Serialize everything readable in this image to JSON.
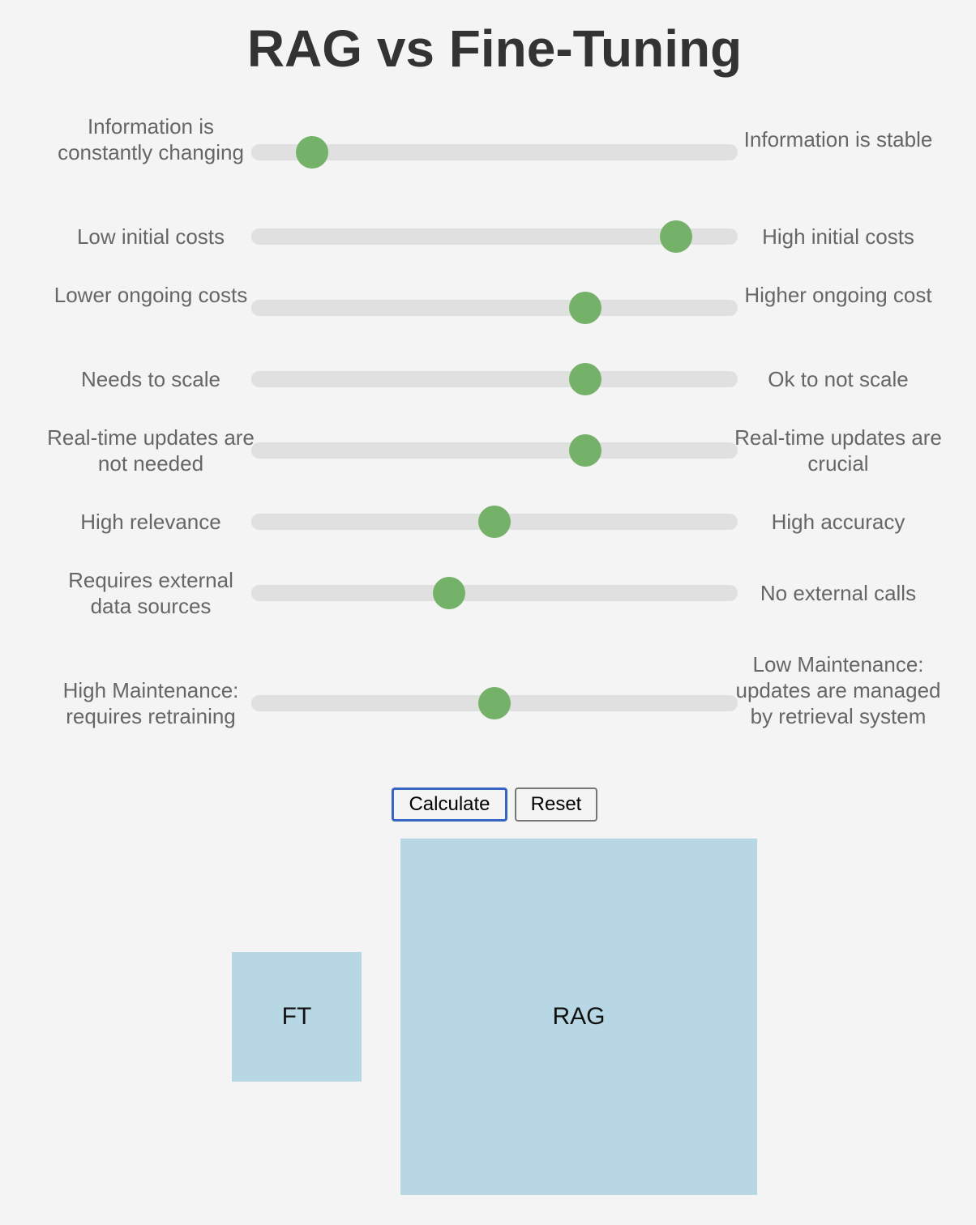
{
  "title": "RAG vs Fine-Tuning",
  "sliders": [
    {
      "left": "Information is constantly changing",
      "right": "Information is stable",
      "value": 0.125
    },
    {
      "left": "Low initial costs",
      "right": "High initial costs",
      "value": 0.873
    },
    {
      "left": "Lower ongoing costs",
      "right": "Higher ongoing cost",
      "value": 0.687
    },
    {
      "left": "Needs to scale",
      "right": "Ok to not scale",
      "value": 0.687
    },
    {
      "left": "Real-time updates are not needed",
      "right": "Real-time updates are crucial",
      "value": 0.687
    },
    {
      "left": "High relevance",
      "right": "High accuracy",
      "value": 0.5
    },
    {
      "left": "Requires external data sources",
      "right": "No external calls",
      "value": 0.407
    },
    {
      "left": "High Maintenance: requires retraining",
      "right": "Low Maintenance: updates are managed by retrieval system",
      "value": 0.5
    }
  ],
  "buttons": {
    "calculate": "Calculate",
    "reset": "Reset"
  },
  "results": {
    "ft_label": "FT",
    "rag_label": "RAG",
    "box_color": "#b6d7e3"
  },
  "colors": {
    "thumb": "#73b268",
    "track": "#e0e0e0",
    "focus_border": "#3566c0"
  }
}
